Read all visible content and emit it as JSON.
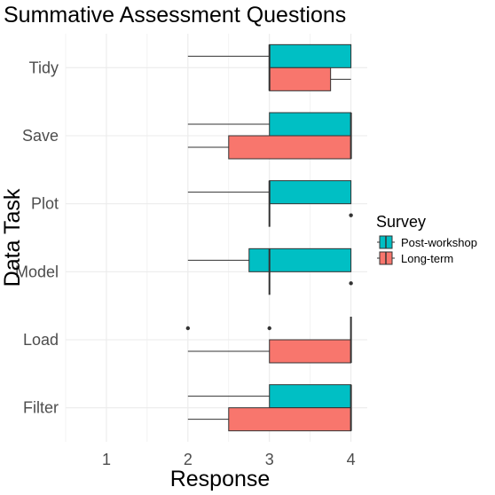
{
  "chart_data": {
    "type": "boxplot",
    "orientation": "horizontal",
    "title": "Summative Assessment Questions",
    "xlabel": "Response",
    "ylabel": "Data Task",
    "xlim": [
      0.5,
      4.2
    ],
    "xticks": [
      1,
      2,
      3,
      4
    ],
    "grid": true,
    "categories": [
      "Tidy",
      "Save",
      "Plot",
      "Model",
      "Load",
      "Filter"
    ],
    "legend": {
      "title": "Survey",
      "placement": "right",
      "entries": [
        "Post-workshop",
        "Long-term"
      ]
    },
    "series": [
      {
        "name": "Post-workshop",
        "color": "#00BFC4",
        "boxes": [
          {
            "category": "Tidy",
            "whisker_low": 2,
            "q1": 3,
            "median": 3,
            "q3": 4,
            "whisker_high": 4,
            "outliers": []
          },
          {
            "category": "Save",
            "whisker_low": 2,
            "q1": 3,
            "median": 4,
            "q3": 4,
            "whisker_high": 4,
            "outliers": []
          },
          {
            "category": "Plot",
            "whisker_low": 2,
            "q1": 3,
            "median": 3,
            "q3": 4,
            "whisker_high": 4,
            "outliers": []
          },
          {
            "category": "Model",
            "whisker_low": 2,
            "q1": 2.75,
            "median": 3,
            "q3": 4,
            "whisker_high": 4,
            "outliers": []
          },
          {
            "category": "Load",
            "whisker_low": 4,
            "q1": 4,
            "median": 4,
            "q3": 4,
            "whisker_high": 4,
            "outliers": [
              2,
              3
            ]
          },
          {
            "category": "Filter",
            "whisker_low": 2,
            "q1": 3,
            "median": 4,
            "q3": 4,
            "whisker_high": 4,
            "outliers": []
          }
        ]
      },
      {
        "name": "Long-term",
        "color": "#F8766D",
        "boxes": [
          {
            "category": "Tidy",
            "whisker_low": 3,
            "q1": 3,
            "median": 3,
            "q3": 3.75,
            "whisker_high": 4,
            "outliers": []
          },
          {
            "category": "Save",
            "whisker_low": 2,
            "q1": 2.5,
            "median": 4,
            "q3": 4,
            "whisker_high": 4,
            "outliers": []
          },
          {
            "category": "Plot",
            "whisker_low": 3,
            "q1": 3,
            "median": 3,
            "q3": 3,
            "whisker_high": 3,
            "outliers": [
              4
            ]
          },
          {
            "category": "Model",
            "whisker_low": 3,
            "q1": 3,
            "median": 3,
            "q3": 3,
            "whisker_high": 3,
            "outliers": [
              4
            ]
          },
          {
            "category": "Load",
            "whisker_low": 2,
            "q1": 3,
            "median": 4,
            "q3": 4,
            "whisker_high": 4,
            "outliers": []
          },
          {
            "category": "Filter",
            "whisker_low": 2,
            "q1": 2.5,
            "median": 4,
            "q3": 4,
            "whisker_high": 4,
            "outliers": []
          }
        ]
      }
    ]
  }
}
